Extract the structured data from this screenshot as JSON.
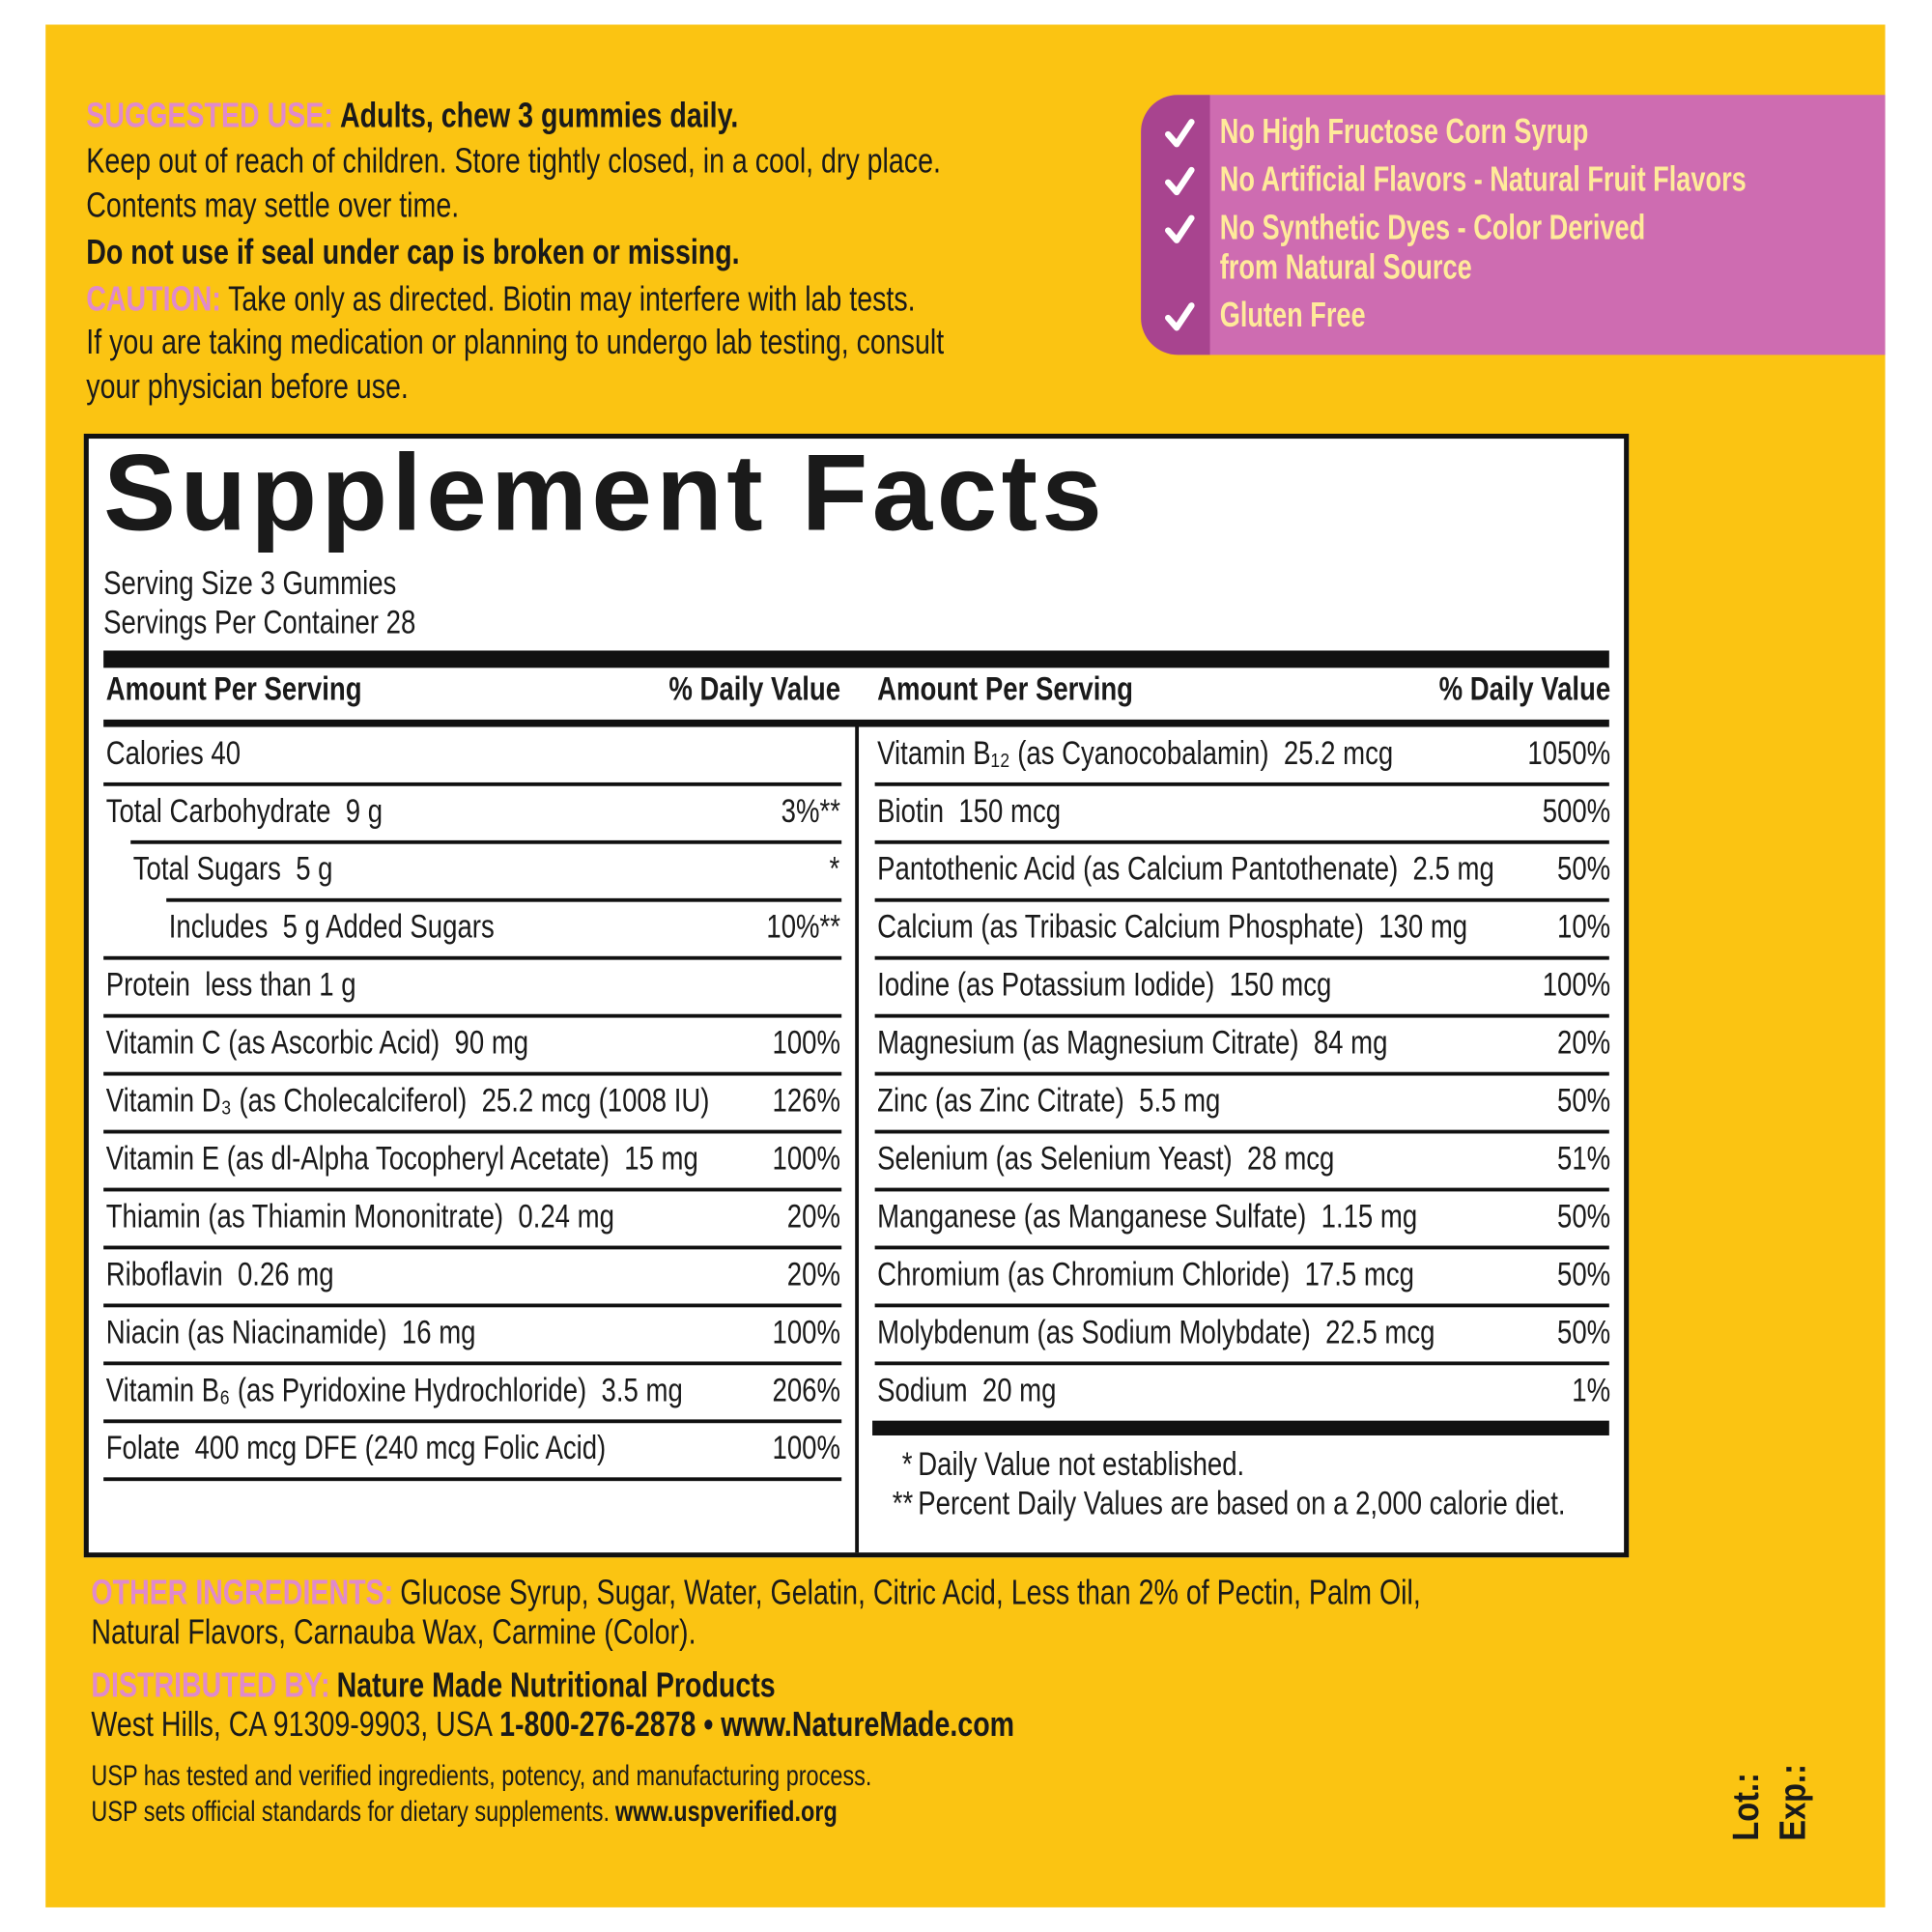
{
  "usage": {
    "suggested_use_label": "SUGGESTED USE:",
    "suggested_use": "Adults, chew 3 gummies daily.",
    "storage_lines": [
      "Keep out of reach of children. Store tightly closed, in a cool, dry place.",
      "Contents may settle over time."
    ],
    "warning": "Do not use if seal under cap is broken or missing.",
    "caution_label": "CAUTION:",
    "caution_lines": [
      "Take only as directed. Biotin may interfere with lab tests.",
      "If you are taking medication or planning to undergo lab testing, consult",
      "your physician before use."
    ]
  },
  "claims": [
    [
      "No High Fructose Corn Syrup"
    ],
    [
      "No Artificial Flavors - Natural Fruit Flavors"
    ],
    [
      "No Synthetic Dyes - Color Derived",
      "from Natural Source"
    ],
    [
      "Gluten Free"
    ]
  ],
  "supplement_facts": {
    "title": "Supplement Facts",
    "serving_size": "Serving Size 3 Gummies",
    "servings_per_container": "Servings Per Container 28",
    "columns": [
      {
        "amount_header": "Amount Per Serving",
        "dv_header": "% Daily Value",
        "rows": [
          {
            "name": "Calories 40"
          },
          {
            "name": "Total Carbohydrate  9 g",
            "dv": "3%**",
            "subrows": [
              {
                "name": "Total Sugars  5 g",
                "dv": "*",
                "subrows": [
                  {
                    "name": "Includes  5 g Added Sugars",
                    "dv": "10%**"
                  }
                ]
              }
            ]
          },
          {
            "name": "Protein  less than 1 g"
          },
          {
            "name": "Vitamin C (as Ascorbic Acid)  90 mg",
            "dv": "100%"
          },
          {
            "name": "Vitamin D₃ (as Cholecalciferol)  25.2 mcg (1008 IU)",
            "dv": "126%"
          },
          {
            "name": "Vitamin E (as dl-Alpha Tocopheryl Acetate)  15 mg",
            "dv": "100%"
          },
          {
            "name": "Thiamin (as Thiamin Mononitrate)  0.24 mg",
            "dv": "20%"
          },
          {
            "name": "Riboflavin  0.26 mg",
            "dv": "20%"
          },
          {
            "name": "Niacin (as Niacinamide)  16 mg",
            "dv": "100%"
          },
          {
            "name": "Vitamin B₆ (as Pyridoxine Hydrochloride)  3.5 mg",
            "dv": "206%"
          },
          {
            "name": "Folate  400 mcg DFE (240 mcg Folic Acid)",
            "dv": "100%"
          }
        ]
      },
      {
        "amount_header": "Amount Per Serving",
        "dv_header": "% Daily Value",
        "rows": [
          {
            "name": "Vitamin B₁₂ (as Cyanocobalamin)  25.2 mcg",
            "dv": "1050%"
          },
          {
            "name": "Biotin  150 mcg",
            "dv": "500%"
          },
          {
            "name": "Pantothenic Acid (as Calcium Pantothenate)  2.5 mg",
            "dv": "50%"
          },
          {
            "name": "Calcium (as Tribasic Calcium Phosphate)  130 mg",
            "dv": "10%"
          },
          {
            "name": "Iodine (as Potassium Iodide)  150 mcg",
            "dv": "100%"
          },
          {
            "name": "Magnesium (as Magnesium Citrate)  84 mg",
            "dv": "20%"
          },
          {
            "name": "Zinc (as Zinc Citrate)  5.5 mg",
            "dv": "50%"
          },
          {
            "name": "Selenium (as Selenium Yeast)  28 mcg",
            "dv": "51%"
          },
          {
            "name": "Manganese (as Manganese Sulfate)  1.15 mg",
            "dv": "50%"
          },
          {
            "name": "Chromium (as Chromium Chloride)  17.5 mcg",
            "dv": "50%"
          },
          {
            "name": "Molybdenum (as Sodium Molybdate)  22.5 mcg",
            "dv": "50%"
          },
          {
            "name": "Sodium  20 mg",
            "dv": "1%"
          }
        ],
        "footnotes": [
          {
            "mark": "*",
            "text": "Daily Value not established."
          },
          {
            "mark": "**",
            "text": "Percent Daily Values are based on a 2,000 calorie diet."
          }
        ]
      }
    ]
  },
  "other_ingredients": {
    "label": "OTHER INGREDIENTS:",
    "lines": [
      "Glucose Syrup, Sugar, Water, Gelatin, Citric Acid, Less than 2% of Pectin, Palm Oil,",
      "Natural Flavors, Carnauba Wax, Carmine (Color)."
    ]
  },
  "distributor": {
    "label": "DISTRIBUTED BY:",
    "name": "Nature Made Nutritional Products",
    "address": "West Hills, CA 91309-9903, USA",
    "contact": "1-800-276-2878 • www.NatureMade.com"
  },
  "usp": {
    "line1": "USP has tested and verified ingredients, potency, and manufacturing process.",
    "line2": "USP sets official standards for dietary supplements.",
    "url": "www.uspverified.org"
  },
  "lot": "Lot.:",
  "exp": "Exp.:"
}
